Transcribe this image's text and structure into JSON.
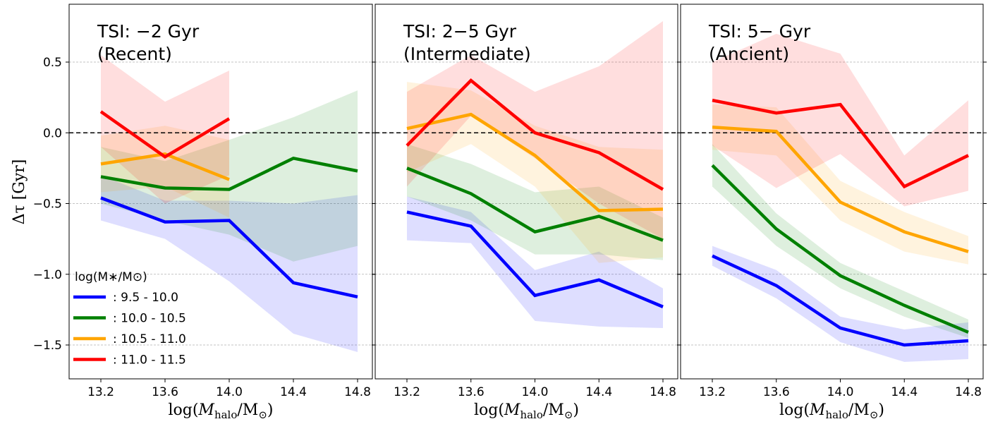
{
  "chart_data": {
    "type": "line",
    "ylabel": "Δτ [Gyr]",
    "ylim": [
      -1.75,
      0.9
    ],
    "yticks": [
      "0.5",
      "0.0",
      "−0.5",
      "−1.0",
      "−1.5"
    ],
    "ytick_values": [
      0.5,
      0.0,
      -0.5,
      -1.0,
      -1.5
    ],
    "xlabel": "log(M_halo/M_⊙)",
    "xlabel_parts": {
      "pre": "log(",
      "sym": "M",
      "sub": "halo",
      "mid": "/M",
      "sun": "⊙",
      "post": ")"
    },
    "xlim": [
      13.0,
      14.85
    ],
    "xticks": [
      "13.2",
      "13.6",
      "14.0",
      "14.4",
      "14.8"
    ],
    "xtick_values": [
      13.2,
      13.6,
      14.0,
      14.4,
      14.8
    ],
    "reference_line_y": 0.0,
    "grid": "horizontal dashed",
    "legend": {
      "title": "log(M∗/M⊙)",
      "placement": "lower-left of first panel",
      "entries": [
        {
          "label": ": 9.5 - 10.0",
          "color": "#0000ff"
        },
        {
          "label": ": 10.0 - 10.5",
          "color": "#008000"
        },
        {
          "label": ": 10.5 - 11.0",
          "color": "#ffa500"
        },
        {
          "label": ": 11.0 - 11.5",
          "color": "#ff0000"
        }
      ]
    },
    "panels": [
      {
        "title_line1": "TSI: −2 Gyr",
        "title_line2": "(Recent)",
        "series": [
          {
            "color": "#0000ff",
            "x": [
              13.2,
              13.6,
              14.0,
              14.4,
              14.8
            ],
            "y": [
              -0.46,
              -0.63,
              -0.62,
              -1.06,
              -1.16
            ],
            "upper": [
              -0.3,
              -0.48,
              -0.48,
              -0.5,
              -0.44
            ],
            "lower": [
              -0.62,
              -0.75,
              -1.05,
              -1.42,
              -1.55
            ]
          },
          {
            "color": "#008000",
            "x": [
              13.2,
              13.6,
              14.0,
              14.4,
              14.8
            ],
            "y": [
              -0.31,
              -0.39,
              -0.4,
              -0.18,
              -0.27
            ],
            "upper": [
              -0.1,
              -0.2,
              -0.05,
              0.11,
              0.3
            ],
            "lower": [
              -0.5,
              -0.62,
              -0.72,
              -0.91,
              -0.8
            ]
          },
          {
            "color": "#ffa500",
            "x": [
              13.2,
              13.6,
              14.0
            ],
            "y": [
              -0.22,
              -0.15,
              -0.33
            ],
            "upper": [
              -0.02,
              0.05,
              -0.05
            ],
            "lower": [
              -0.42,
              -0.38,
              -0.6
            ]
          },
          {
            "color": "#ff0000",
            "x": [
              13.2,
              13.6,
              14.0
            ],
            "y": [
              0.15,
              -0.17,
              0.1
            ],
            "upper": [
              0.55,
              0.22,
              0.44
            ],
            "lower": [
              -0.1,
              -0.5,
              -0.3
            ]
          }
        ]
      },
      {
        "title_line1": "TSI: 2−5 Gyr",
        "title_line2": "(Intermediate)",
        "series": [
          {
            "color": "#0000ff",
            "x": [
              13.2,
              13.6,
              14.0,
              14.4,
              14.8
            ],
            "y": [
              -0.56,
              -0.66,
              -1.15,
              -1.04,
              -1.23
            ],
            "upper": [
              -0.45,
              -0.56,
              -0.97,
              -0.84,
              -1.1
            ],
            "lower": [
              -0.76,
              -0.78,
              -1.33,
              -1.37,
              -1.38
            ]
          },
          {
            "color": "#008000",
            "x": [
              13.2,
              13.6,
              14.0,
              14.4,
              14.8
            ],
            "y": [
              -0.25,
              -0.43,
              -0.7,
              -0.59,
              -0.76
            ],
            "upper": [
              -0.08,
              -0.22,
              -0.42,
              -0.38,
              -0.6
            ],
            "lower": [
              -0.45,
              -0.62,
              -0.86,
              -0.86,
              -0.9
            ]
          },
          {
            "color": "#ffa500",
            "x": [
              13.2,
              13.6,
              14.0,
              14.4,
              14.8
            ],
            "y": [
              0.03,
              0.13,
              -0.16,
              -0.55,
              -0.54
            ],
            "upper": [
              0.36,
              0.3,
              0.05,
              -0.1,
              -0.12
            ],
            "lower": [
              -0.28,
              -0.08,
              -0.38,
              -0.92,
              -0.88
            ]
          },
          {
            "color": "#ff0000",
            "x": [
              13.2,
              13.6,
              14.0,
              14.4,
              14.8
            ],
            "y": [
              -0.09,
              0.37,
              0.0,
              -0.14,
              -0.4
            ],
            "upper": [
              0.29,
              0.55,
              0.29,
              0.47,
              0.79
            ],
            "lower": [
              -0.38,
              0.12,
              -0.18,
              -0.5,
              -0.75
            ]
          }
        ]
      },
      {
        "title_line1": "TSI: 5− Gyr",
        "title_line2": "(Ancient)",
        "series": [
          {
            "color": "#0000ff",
            "x": [
              13.2,
              13.6,
              14.0,
              14.4,
              14.8
            ],
            "y": [
              -0.87,
              -1.08,
              -1.38,
              -1.5,
              -1.47
            ],
            "upper": [
              -0.8,
              -0.97,
              -1.3,
              -1.39,
              -1.34
            ],
            "lower": [
              -0.94,
              -1.17,
              -1.48,
              -1.62,
              -1.6
            ]
          },
          {
            "color": "#008000",
            "x": [
              13.2,
              13.6,
              14.0,
              14.4,
              14.8
            ],
            "y": [
              -0.23,
              -0.68,
              -1.01,
              -1.22,
              -1.41
            ],
            "upper": [
              -0.08,
              -0.57,
              -0.92,
              -1.12,
              -1.32
            ],
            "lower": [
              -0.38,
              -0.8,
              -1.1,
              -1.3,
              -1.45
            ]
          },
          {
            "color": "#ffa500",
            "x": [
              13.2,
              13.6,
              14.0,
              14.4,
              14.8
            ],
            "y": [
              0.04,
              0.01,
              -0.49,
              -0.7,
              -0.84
            ],
            "upper": [
              0.2,
              0.18,
              -0.34,
              -0.56,
              -0.73
            ],
            "lower": [
              -0.12,
              -0.16,
              -0.62,
              -0.84,
              -0.93
            ]
          },
          {
            "color": "#ff0000",
            "x": [
              13.2,
              13.6,
              14.0,
              14.4,
              14.8
            ],
            "y": [
              0.23,
              0.14,
              0.2,
              -0.38,
              -0.16
            ],
            "upper": [
              0.5,
              0.7,
              0.56,
              -0.16,
              0.23
            ],
            "lower": [
              -0.09,
              -0.39,
              -0.15,
              -0.52,
              -0.41
            ]
          }
        ]
      }
    ]
  }
}
